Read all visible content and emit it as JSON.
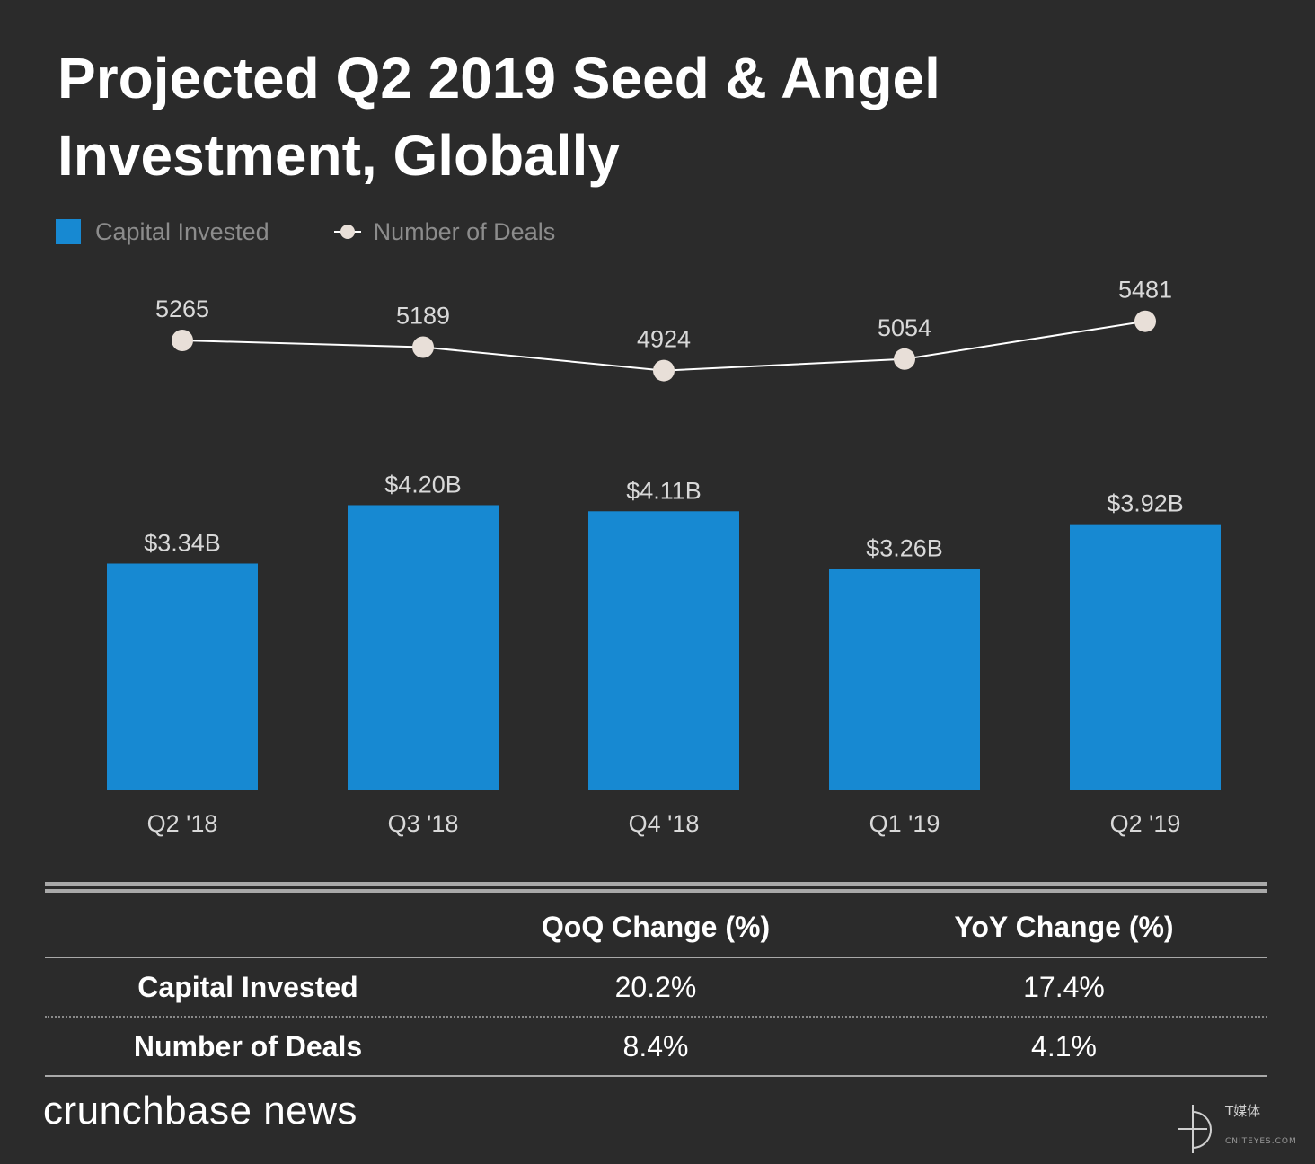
{
  "title": "Projected Q2 2019 Seed & Angel Investment, Globally",
  "legend": {
    "bar_label": "Capital Invested",
    "line_label": "Number of Deals"
  },
  "colors": {
    "background": "#2b2b2b",
    "bar": "#1789d2",
    "line": "#ffffff",
    "marker": "#e8dfd8",
    "text_muted": "#8c8c8c"
  },
  "chart_data": {
    "type": "bar",
    "categories": [
      "Q2 '18",
      "Q3 '18",
      "Q4 '18",
      "Q1 '19",
      "Q2 '19"
    ],
    "series": [
      {
        "name": "Capital Invested",
        "type": "bar",
        "values": [
          3.34,
          4.2,
          4.11,
          3.26,
          3.92
        ],
        "labels": [
          "$3.34B",
          "$4.20B",
          "$4.11B",
          "$3.26B",
          "$3.92B"
        ]
      },
      {
        "name": "Number of Deals",
        "type": "line",
        "values": [
          5265,
          5189,
          4924,
          5054,
          5481
        ],
        "labels": [
          "5265",
          "5189",
          "4924",
          "5054",
          "5481"
        ]
      }
    ],
    "legend_position": "top-left",
    "grid": false
  },
  "table": {
    "headers": [
      "",
      "QoQ Change (%)",
      "YoY Change (%)"
    ],
    "rows": [
      {
        "label": "Capital Invested",
        "qoq": "20.2%",
        "yoy": "17.4%"
      },
      {
        "label": "Number of Deals",
        "qoq": "8.4%",
        "yoy": "4.1%"
      }
    ]
  },
  "brand": "crunchbase news",
  "watermark": {
    "text": "T媒体",
    "sub": "CNITEYES.COM"
  }
}
